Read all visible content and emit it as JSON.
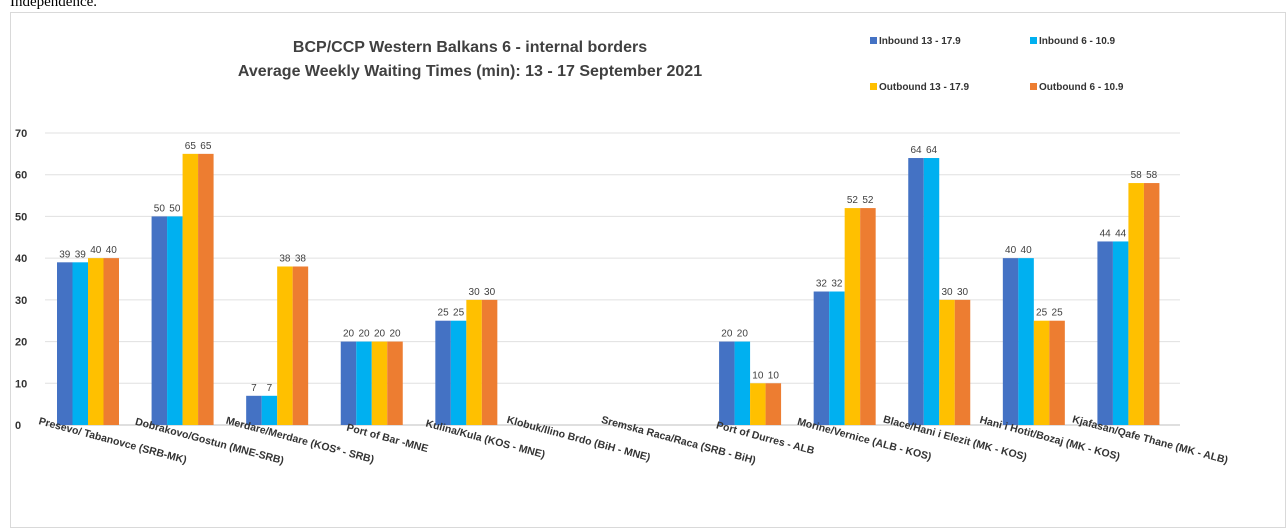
{
  "top_text": "Independence.",
  "colors": {
    "inbound_13_17_9": "#4472C4",
    "inbound_6_10_9": "#00B0F0",
    "outbound_13_17_9": "#FFC000",
    "outbound_6_10_9": "#ED7D31",
    "grid": "#e0e0e0",
    "text": "#333333"
  },
  "chart_data": {
    "type": "bar",
    "title": "BCP/CCP Western Balkans 6 - internal borders",
    "subtitle": "Average Weekly Waiting Times (min): 13 - 17 September 2021",
    "xlabel": "",
    "ylabel": "",
    "ylim": [
      0,
      70
    ],
    "yticks": [
      0,
      10,
      20,
      30,
      40,
      50,
      60,
      70
    ],
    "grid": true,
    "legend_position": "top-right",
    "categories": [
      "Presevo/ Tabanovce (SRB-MK)",
      "Dobrakovo/Gostun (MNE-SRB)",
      "Merdare/Merdare (KOS* - SRB)",
      "Port of Bar -MNE",
      "Kulina/Kula (KOS - MNE)",
      "Klobuk/Ilino Brdo (BiH - MNE)",
      "Sremska Raca/Raca (SRB - BiH)",
      "Port of Durres - ALB",
      "Morine/Vernice (ALB - KOS)",
      "Blace/Hani i Elezit (MK - KOS)",
      "Hani i Hotit/Bozaj (MK - KOS)",
      "Kjafasan/Qafe Thane (MK - ALB)"
    ],
    "series": [
      {
        "name": "Inbound 13 - 17.9",
        "color": "#4472C4",
        "values": [
          39,
          50,
          7,
          20,
          25,
          null,
          null,
          20,
          32,
          64,
          40,
          44
        ]
      },
      {
        "name": "Inbound 6 - 10.9",
        "color": "#00B0F0",
        "values": [
          39,
          50,
          7,
          20,
          25,
          null,
          null,
          20,
          32,
          64,
          40,
          44
        ]
      },
      {
        "name": "Outbound 13 - 17.9",
        "color": "#FFC000",
        "values": [
          40,
          65,
          38,
          20,
          30,
          null,
          null,
          10,
          52,
          30,
          25,
          58
        ]
      },
      {
        "name": "Outbound 6 - 10.9",
        "color": "#ED7D31",
        "values": [
          40,
          65,
          38,
          20,
          30,
          null,
          null,
          10,
          52,
          30,
          25,
          58
        ]
      }
    ]
  }
}
